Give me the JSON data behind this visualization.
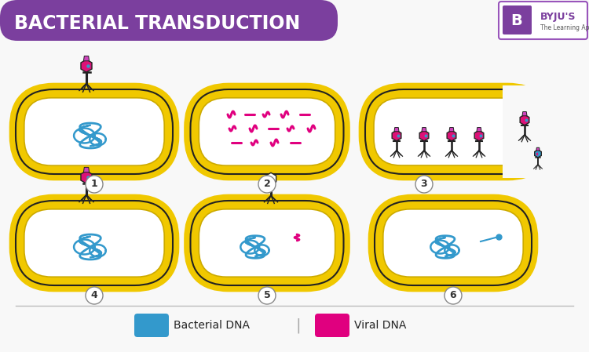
{
  "title": "BACTERIAL TRANSDUCTION",
  "title_color": "#ffffff",
  "title_bg": "#7b3f9e",
  "bg_color": "#f8f8f8",
  "cell_fill": "#ffffff",
  "cell_outer": "#f0c800",
  "bacterial_dna_color": "#3399cc",
  "viral_dna_color": "#e0007f",
  "legend_bact": "Bacterial DNA",
  "legend_viral": "Viral DNA",
  "panel_labels": [
    "1",
    "2",
    "3",
    "4",
    "5",
    "6"
  ]
}
